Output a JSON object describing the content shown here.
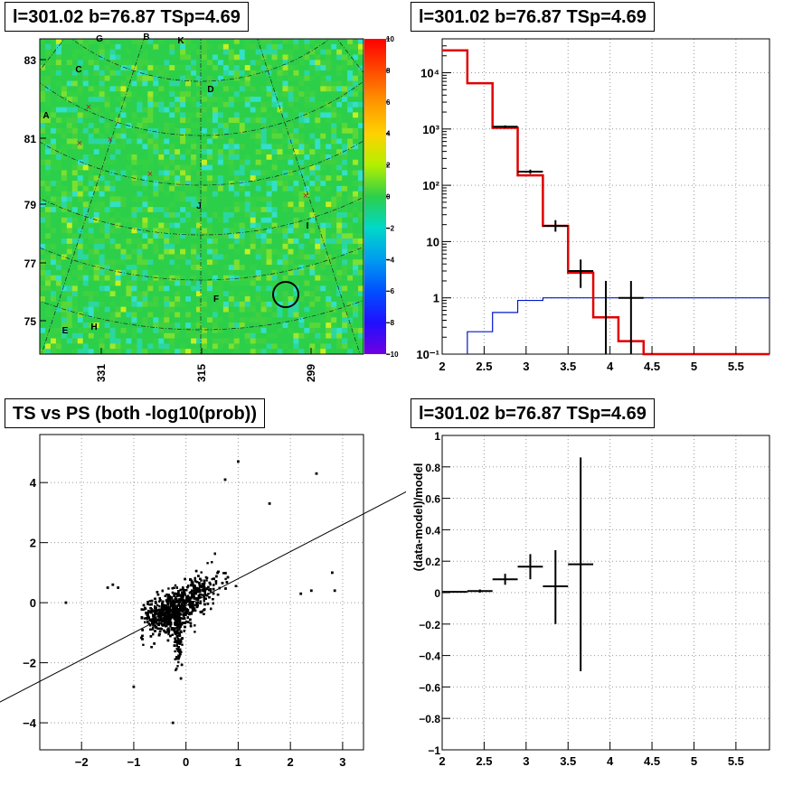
{
  "colors": {
    "model": "#e00000",
    "background": "#0018c8",
    "data": "#000000",
    "map_base": "#2ccf4a"
  },
  "chart_data": [
    {
      "type": "heatmap",
      "title": "l=301.02 b=76.87 TSp=4.69",
      "y_ticks": [
        "83",
        "81",
        "79",
        "77",
        "75"
      ],
      "x_ticks": [
        "331",
        "315",
        "299"
      ],
      "colorbar": {
        "range": [
          -10,
          10
        ],
        "ticks": [
          "10",
          "8",
          "6",
          "4",
          "2",
          "0",
          "−2",
          "−4",
          "−6",
          "−8",
          "−10"
        ]
      },
      "source_labels": [
        "G",
        "B",
        "K",
        "C",
        "D",
        "A",
        "J",
        "I",
        "F",
        "H",
        "E"
      ]
    },
    {
      "type": "line",
      "title": "l=301.02 b=76.87 TSp=4.69",
      "x_ticks": [
        "2",
        "2.5",
        "3",
        "3.5",
        "4",
        "4.5",
        "5",
        "5.5"
      ],
      "xlim": [
        2,
        5.9
      ],
      "ylog": true,
      "ylim": [
        0.1,
        40000
      ],
      "y_ticks": [
        "10⁴",
        "10³",
        "10²",
        "10",
        "1",
        "10⁻¹"
      ],
      "grid": true,
      "model_bin_edges": [
        2.0,
        2.3,
        2.6,
        2.9,
        3.2,
        3.5,
        3.8,
        4.1,
        4.4,
        5.9
      ],
      "model_values": [
        25000,
        6500,
        1050,
        150,
        19,
        2.8,
        0.45,
        0.17,
        0.1
      ],
      "background_bin_edges": [
        2.3,
        2.6,
        2.9,
        3.2,
        5.9
      ],
      "background_values": [
        0.25,
        0.55,
        0.9,
        1.0
      ],
      "data_points": [
        {
          "x": 2.75,
          "y": 1100,
          "lo": 1040,
          "hi": 1160,
          "xerr": 0.15
        },
        {
          "x": 3.05,
          "y": 175,
          "lo": 160,
          "hi": 190,
          "xerr": 0.15
        },
        {
          "x": 3.35,
          "y": 19,
          "lo": 15,
          "hi": 24,
          "xerr": 0.15
        },
        {
          "x": 3.65,
          "y": 3,
          "lo": 1.5,
          "hi": 4.8,
          "xerr": 0.15
        },
        {
          "x": 3.95,
          "y": 1,
          "lo": 0.1,
          "hi": 2,
          "xerr": 0.0
        },
        {
          "x": 4.25,
          "y": 1,
          "lo": 0.1,
          "hi": 2,
          "xerr": 0.15
        }
      ]
    },
    {
      "type": "scatter",
      "title": "TS vs PS (both -log10(prob))",
      "x_ticks": [
        "−2",
        "−1",
        "0",
        "1",
        "2",
        "3"
      ],
      "y_ticks": [
        "4",
        "2",
        "0",
        "−2",
        "−4"
      ],
      "xlim": [
        -2.8,
        3.4
      ],
      "ylim": [
        -4.9,
        5.6
      ],
      "grid": true,
      "fit_line": {
        "slope": 0.9,
        "intercept": -0.1
      },
      "outlier_points": [
        [
          -2.3,
          0.0
        ],
        [
          -1.5,
          0.5
        ],
        [
          -1.4,
          0.6
        ],
        [
          -1.3,
          0.5
        ],
        [
          2.8,
          1.0
        ],
        [
          2.85,
          0.4
        ],
        [
          2.4,
          0.4
        ],
        [
          2.5,
          4.3
        ],
        [
          1.0,
          4.7
        ],
        [
          0.75,
          4.1
        ],
        [
          -0.25,
          -4.0
        ],
        [
          -1.0,
          -2.8
        ],
        [
          2.2,
          0.3
        ],
        [
          1.6,
          3.3
        ]
      ]
    },
    {
      "type": "scatter",
      "title": "l=301.02 b=76.87 TSp=4.69",
      "ylabel": "(data-model)/model",
      "x_ticks": [
        "2",
        "2.5",
        "3",
        "3.5",
        "4",
        "4.5",
        "5",
        "5.5"
      ],
      "y_ticks": [
        "1",
        "0.8",
        "0.6",
        "0.4",
        "0.2",
        "0",
        "−0.2",
        "−0.4",
        "−0.6",
        "−0.8",
        "−1"
      ],
      "xlim": [
        2,
        5.9
      ],
      "ylim": [
        -1,
        1
      ],
      "grid": true,
      "points": [
        {
          "x": 2.15,
          "y": 0.005,
          "xerr": 0.15,
          "yerr_lo": 0.005,
          "yerr_hi": 0.005
        },
        {
          "x": 2.45,
          "y": 0.01,
          "xerr": 0.15,
          "yerr_lo": 0.01,
          "yerr_hi": 0.01
        },
        {
          "x": 2.75,
          "y": 0.085,
          "xerr": 0.15,
          "yerr_lo": 0.035,
          "yerr_hi": 0.035
        },
        {
          "x": 3.05,
          "y": 0.165,
          "xerr": 0.15,
          "yerr_lo": 0.08,
          "yerr_hi": 0.08
        },
        {
          "x": 3.35,
          "y": 0.04,
          "xerr": 0.15,
          "yerr_lo": 0.24,
          "yerr_hi": 0.23
        },
        {
          "x": 3.65,
          "y": 0.18,
          "xerr": 0.15,
          "yerr_lo": 0.68,
          "yerr_hi": 0.68
        }
      ]
    }
  ]
}
